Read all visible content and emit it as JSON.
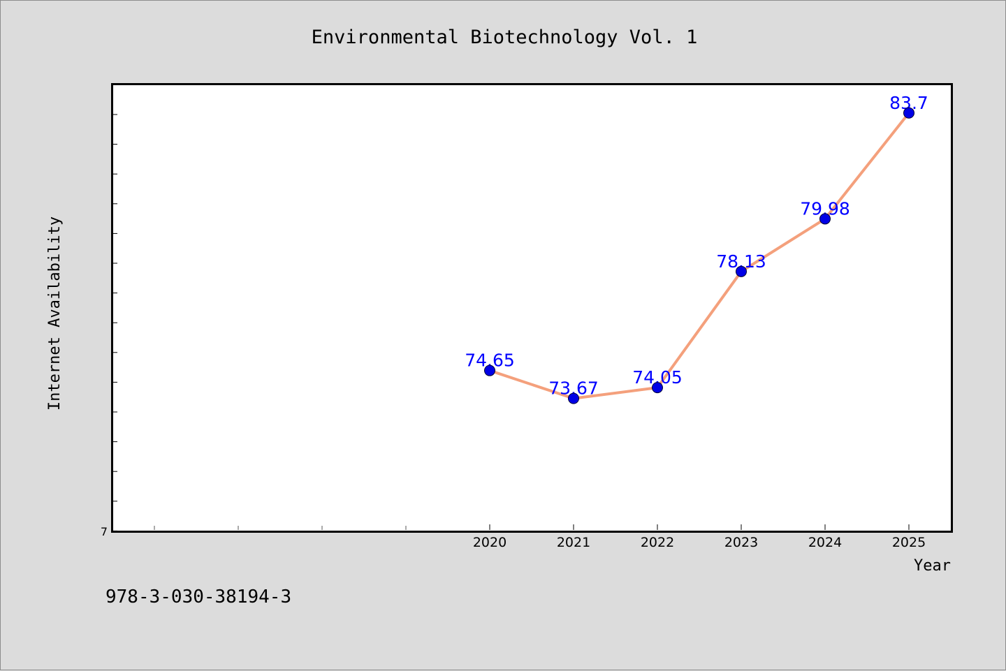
{
  "chart_data": {
    "type": "line",
    "title": "Environmental Biotechnology Vol. 1",
    "xlabel": "Year",
    "ylabel": "Internet Availability",
    "x": [
      "2020",
      "2021",
      "2022",
      "2023",
      "2024",
      "2025"
    ],
    "series": [
      {
        "values": [
          74.65,
          73.67,
          74.05,
          78.13,
          79.98,
          83.7
        ],
        "labels": [
          "74.65",
          "73.67",
          "74.05",
          "78.13",
          "79.98",
          "83.7"
        ],
        "line_color": "#f4a07c",
        "marker_color": "#0000e6",
        "label_color": "#0000ff"
      }
    ],
    "ylim": [
      69,
      84.7
    ],
    "y_tick_labels": [
      "7"
    ],
    "grid": false,
    "legend": "none"
  },
  "footer_text": "978-3-030-38194-3",
  "colors": {
    "background": "#dcdcdc",
    "plot_background": "#ffffff",
    "axis": "#000000"
  }
}
